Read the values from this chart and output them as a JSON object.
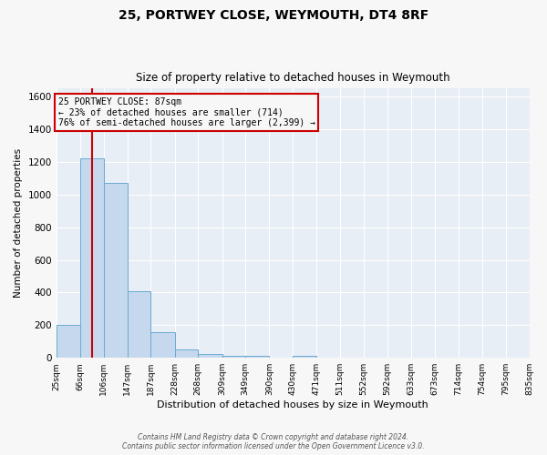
{
  "title": "25, PORTWEY CLOSE, WEYMOUTH, DT4 8RF",
  "subtitle": "Size of property relative to detached houses in Weymouth",
  "xlabel": "Distribution of detached houses by size in Weymouth",
  "ylabel": "Number of detached properties",
  "bin_edges": [
    25,
    66,
    106,
    147,
    187,
    228,
    268,
    309,
    349,
    390,
    430,
    471,
    511,
    552,
    592,
    633,
    673,
    714,
    754,
    795,
    835
  ],
  "bar_heights": [
    200,
    1220,
    1070,
    410,
    160,
    50,
    25,
    15,
    15,
    0,
    15,
    0,
    0,
    0,
    0,
    0,
    0,
    0,
    0,
    0
  ],
  "bar_color": "#c5d8ed",
  "bar_edgecolor": "#6aabd2",
  "property_size": 87,
  "vline_color": "#cc0000",
  "annotation_box_edgecolor": "#cc0000",
  "annotation_line1": "25 PORTWEY CLOSE: 87sqm",
  "annotation_line2": "← 23% of detached houses are smaller (714)",
  "annotation_line3": "76% of semi-detached houses are larger (2,399) →",
  "ylim": [
    0,
    1650
  ],
  "yticks": [
    0,
    200,
    400,
    600,
    800,
    1000,
    1200,
    1400,
    1600
  ],
  "footer_line1": "Contains HM Land Registry data © Crown copyright and database right 2024.",
  "footer_line2": "Contains public sector information licensed under the Open Government Licence v3.0.",
  "bg_color": "#f7f7f7",
  "plot_bg_color": "#e8eef5"
}
